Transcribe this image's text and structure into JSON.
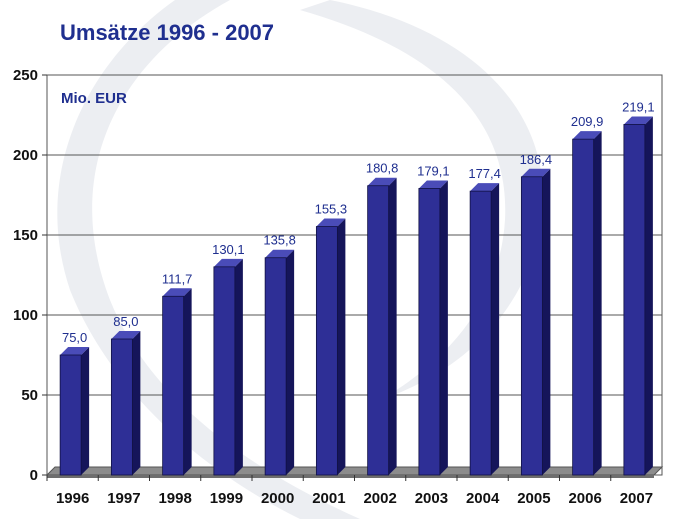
{
  "title": "Umsätze 1996 - 2007",
  "chart_data": {
    "type": "bar",
    "title": "Umsätze 1996 - 2007",
    "ylabel": "Mio. EUR",
    "xlabel": "",
    "categories": [
      "1996",
      "1997",
      "1998",
      "1999",
      "2000",
      "2001",
      "2002",
      "2003",
      "2004",
      "2005",
      "2006",
      "2007"
    ],
    "values": [
      75.0,
      85.0,
      111.7,
      130.1,
      135.8,
      155.3,
      180.8,
      179.1,
      177.4,
      186.4,
      209.9,
      219.1
    ],
    "value_labels": [
      "75,0",
      "85,0",
      "111,7",
      "130,1",
      "135,8",
      "155,3",
      "180,8",
      "179,1",
      "177,4",
      "186,4",
      "209,9",
      "219,1"
    ],
    "ylim": [
      0,
      250
    ],
    "yticks": [
      0,
      50,
      100,
      150,
      200,
      250
    ],
    "grid": true,
    "bar_color": "#2e2f96",
    "bar_side_color": "#15155a",
    "bar_top_color": "#4a4cb8"
  },
  "colors": {
    "title": "#1f2f8f",
    "background_swirl": "#eceef2"
  }
}
